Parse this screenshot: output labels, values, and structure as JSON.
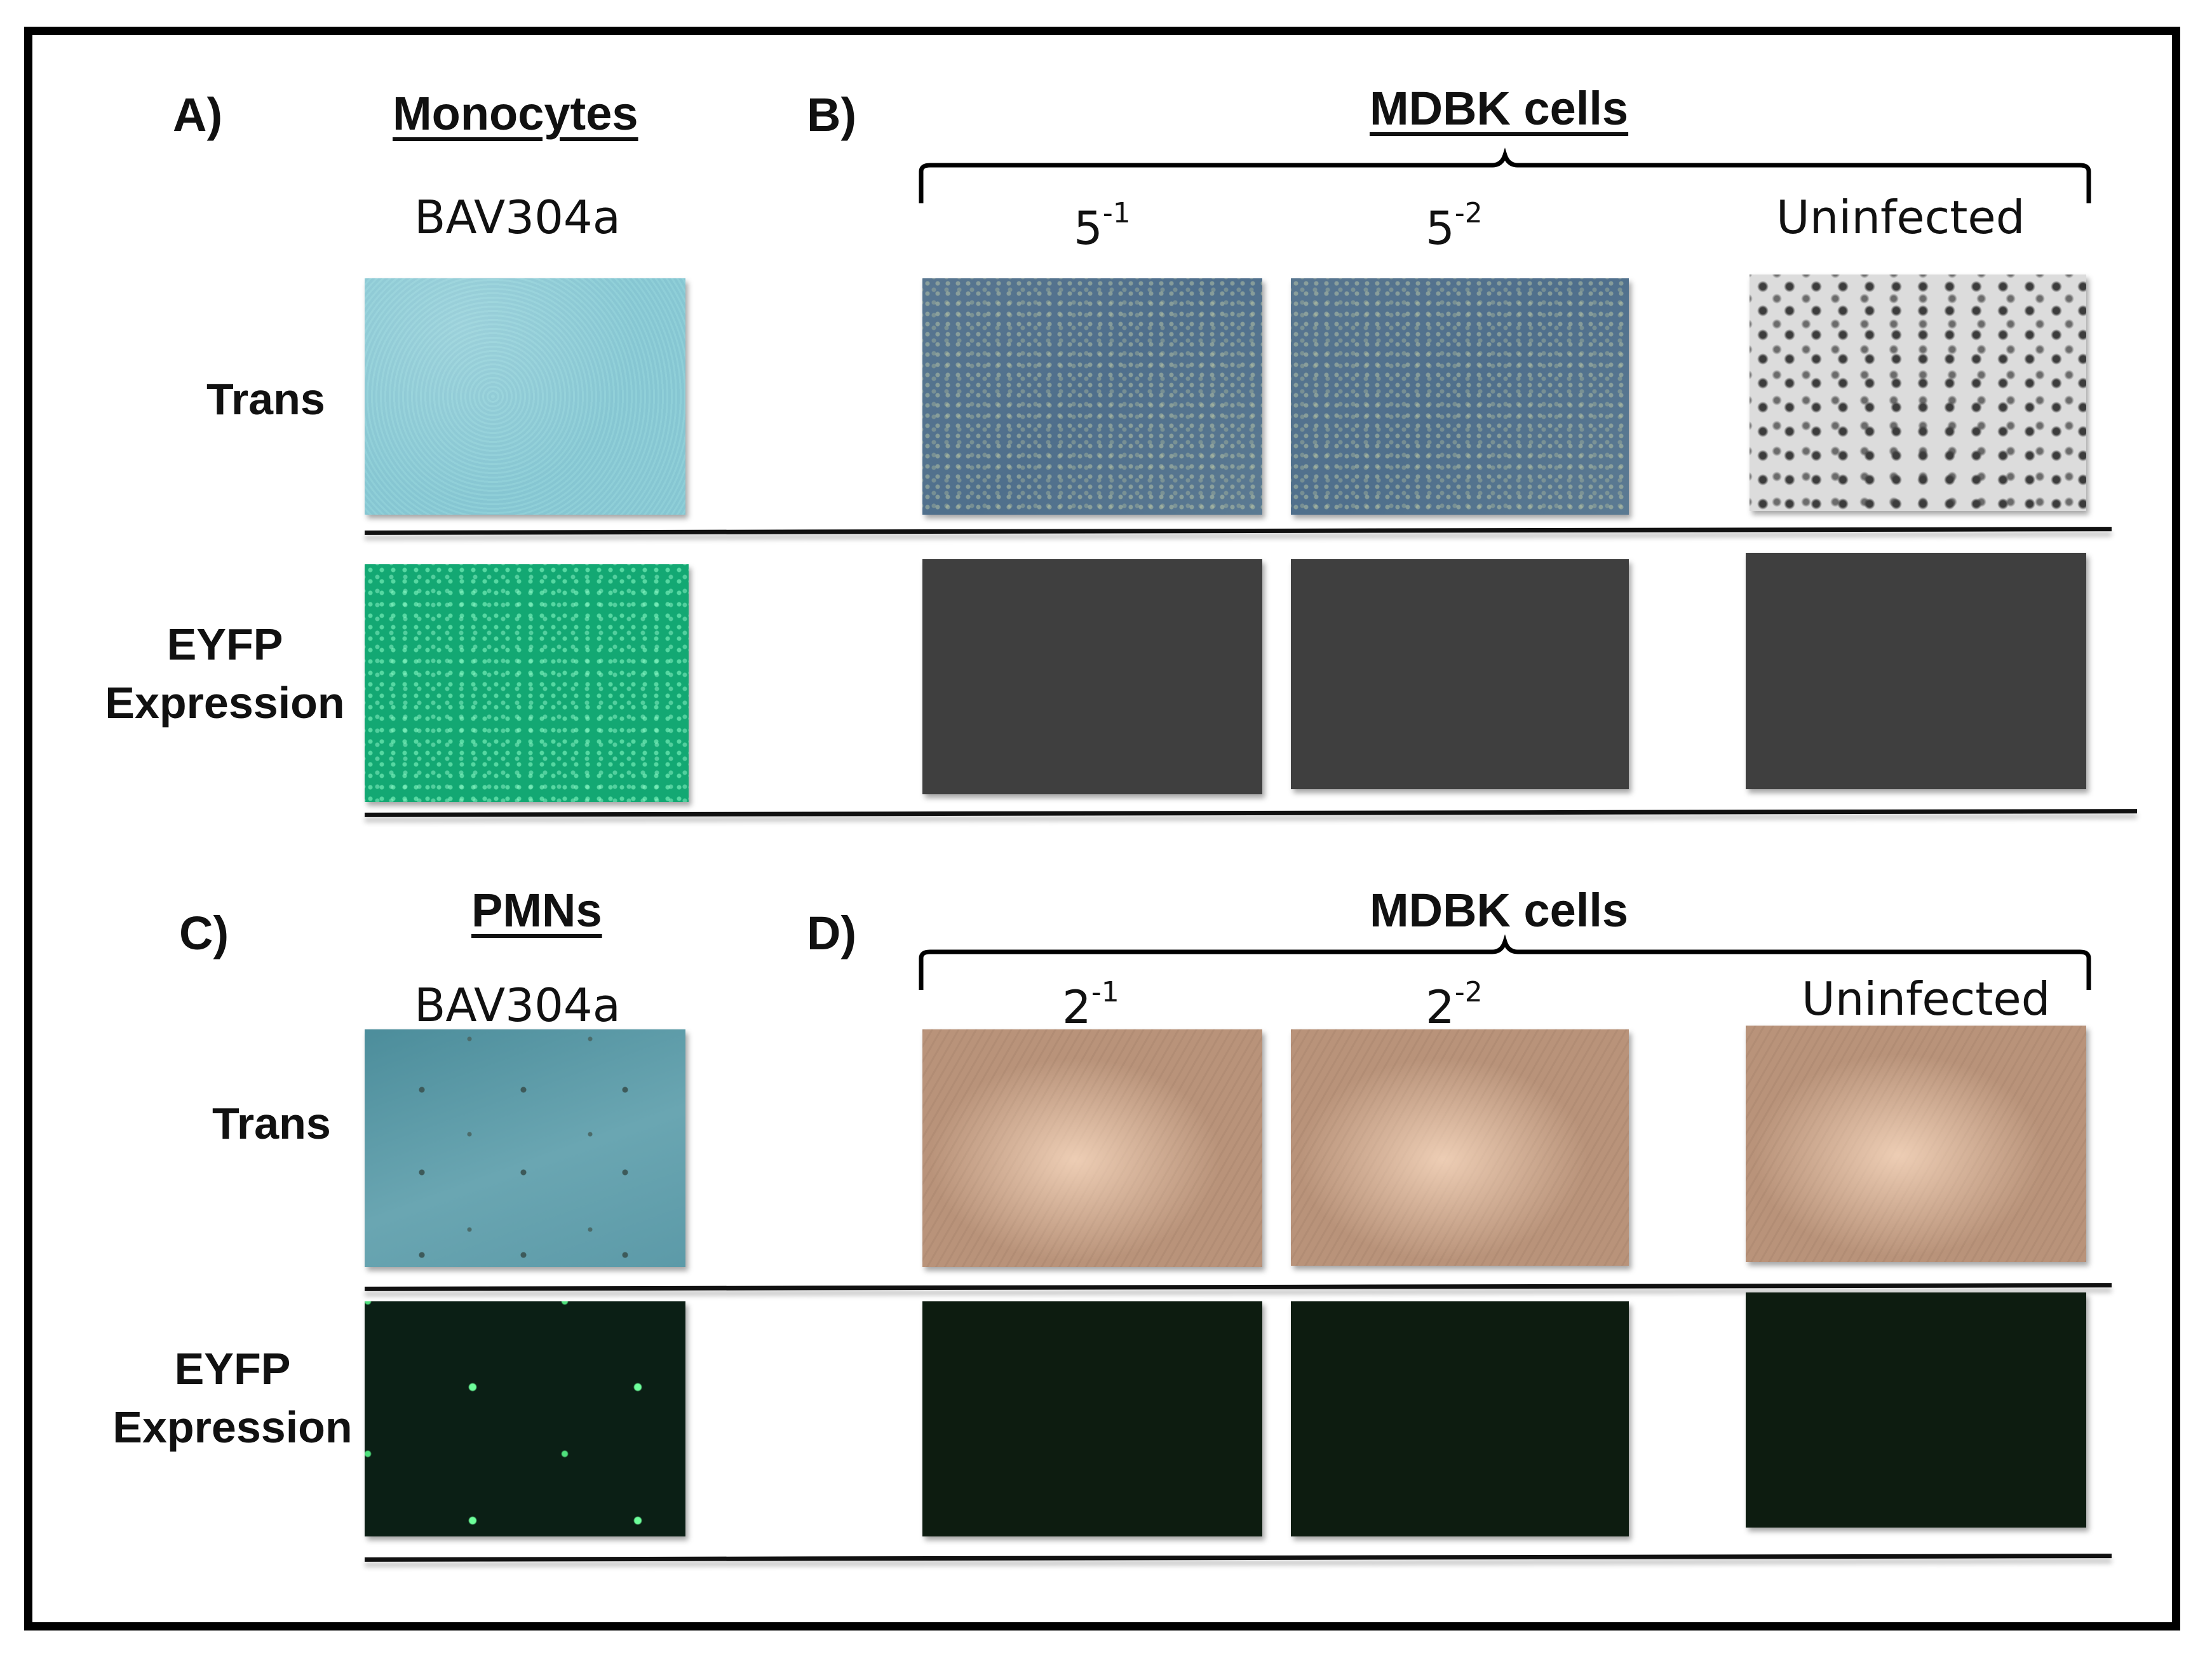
{
  "panels": {
    "A": {
      "letter": "A)",
      "title": "Monocytes",
      "condition": "BAV304a"
    },
    "B": {
      "letter": "B)",
      "title": "MDBK cells",
      "conditions": [
        {
          "base": "5",
          "exp": "-1"
        },
        {
          "base": "5",
          "exp": "-2"
        },
        {
          "label": "Uninfected"
        }
      ]
    },
    "C": {
      "letter": "C)",
      "title": "PMNs",
      "condition": "BAV304a"
    },
    "D": {
      "letter": "D)",
      "title": "MDBK cells",
      "conditions": [
        {
          "base": "2",
          "exp": "-1"
        },
        {
          "base": "2",
          "exp": "-2"
        },
        {
          "label": "Uninfected"
        }
      ]
    }
  },
  "row_labels": {
    "trans": "Trans",
    "eyfp_line1": "EYFP",
    "eyfp_line2": "Expression"
  },
  "colors": {
    "monocyte_trans": "#8ccad6",
    "monocyte_eyfp": "#13a873",
    "mdbk_trans_top": "#587690",
    "mdbk_eyfp_top": "#3f3f3f",
    "pmn_trans": "#5c9aa8",
    "pmn_eyfp": "#0b1f15",
    "mdbk_trans_bottom": "#b9937a",
    "mdbk_eyfp_bottom": "#0d1c10"
  }
}
